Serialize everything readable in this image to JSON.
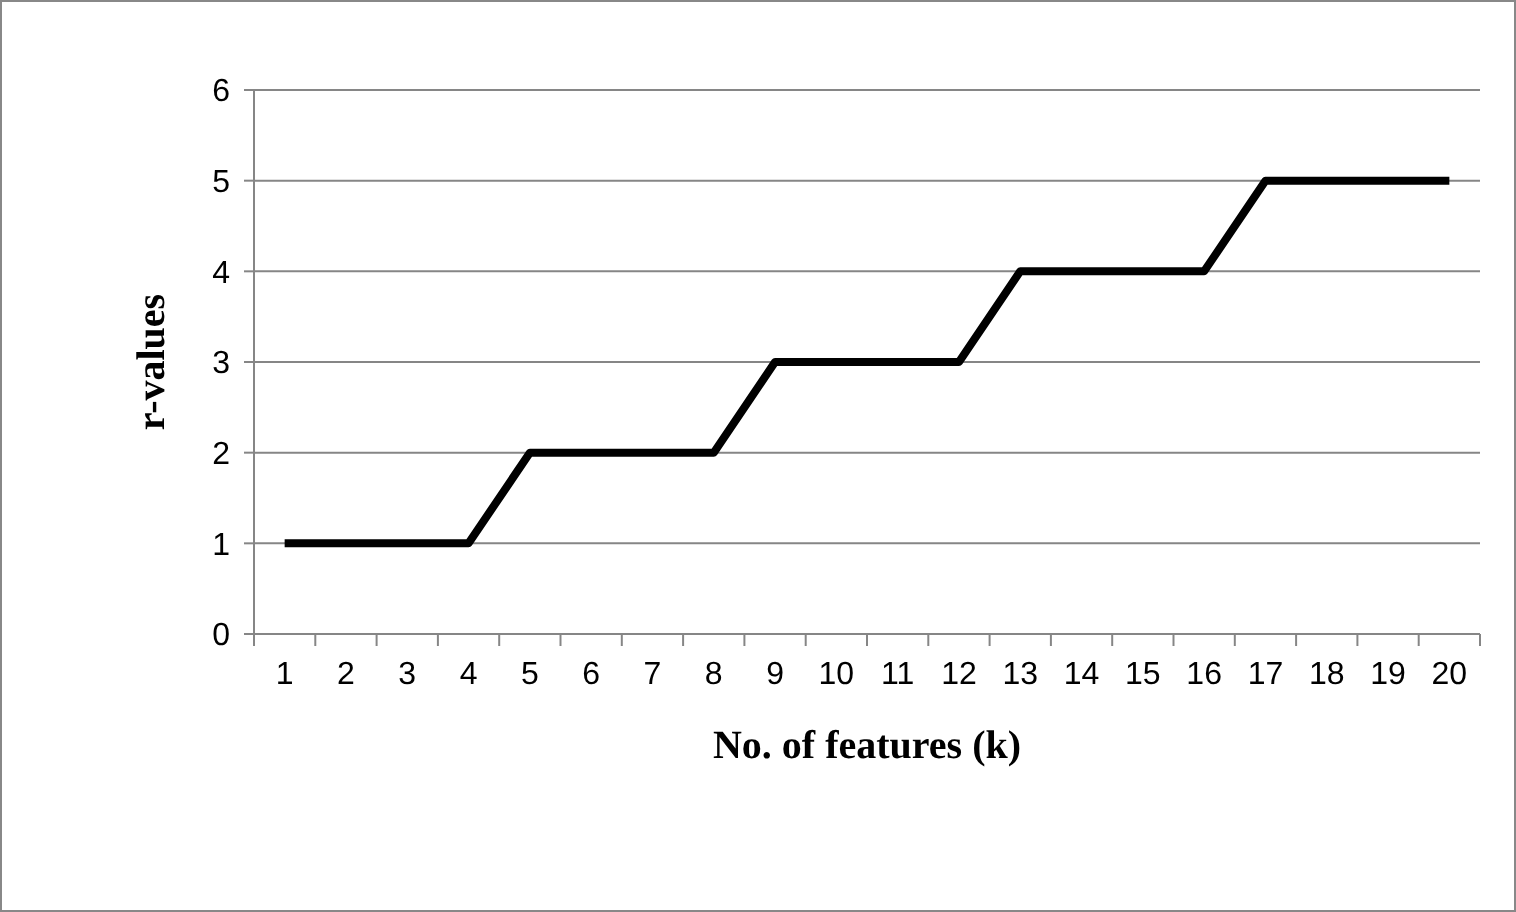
{
  "chart_data": {
    "type": "line",
    "xlabel": "No. of features (k)",
    "ylabel": "r-values",
    "categories": [
      "1",
      "2",
      "3",
      "4",
      "5",
      "6",
      "7",
      "8",
      "9",
      "10",
      "11",
      "12",
      "13",
      "14",
      "15",
      "16",
      "17",
      "18",
      "19",
      "20"
    ],
    "series": [
      {
        "color": "#000000",
        "values": [
          1,
          1,
          1,
          1,
          2,
          2,
          2,
          2,
          3,
          3,
          3,
          3,
          4,
          4,
          4,
          4,
          5,
          5,
          5,
          5
        ]
      }
    ],
    "ylim": [
      0,
      6
    ],
    "yticks": [
      0,
      1,
      2,
      3,
      4,
      5,
      6
    ],
    "grid": "y",
    "marker": "none",
    "line_style": "solid"
  }
}
